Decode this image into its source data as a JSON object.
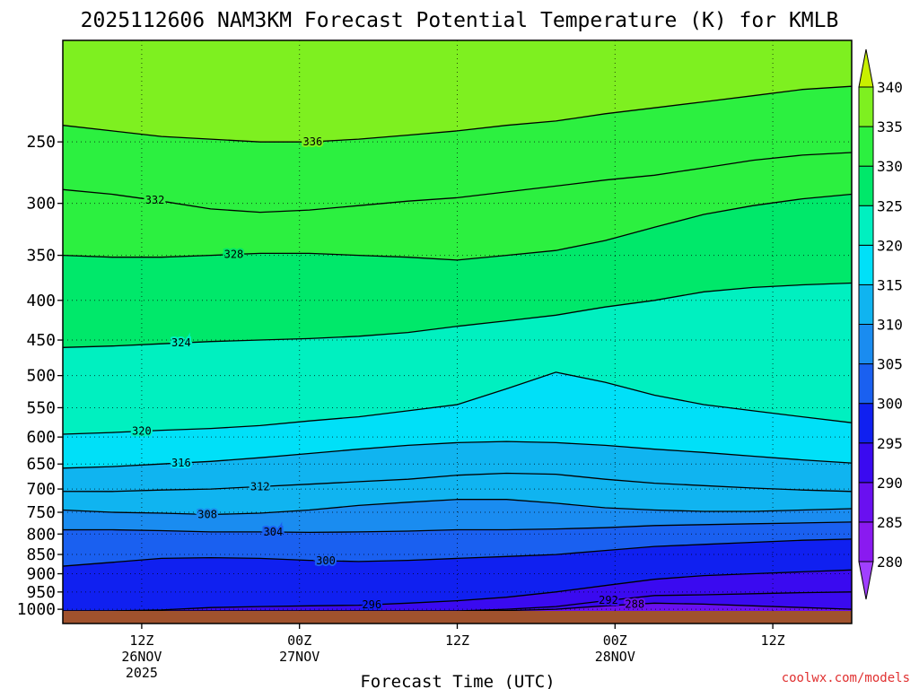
{
  "chart_data": {
    "type": "heatmap",
    "title": "2025112606 NAM3KM Forecast Potential Temperature (K) for KMLB",
    "xlabel": "Forecast Time (UTC)",
    "ylabel": "",
    "credit": "coolwx.com/models",
    "x_range_hours": [
      0,
      60
    ],
    "x_ticks": [
      {
        "hour": 6,
        "lines": [
          "12Z",
          "26NOV",
          "2025"
        ]
      },
      {
        "hour": 18,
        "lines": [
          "00Z",
          "27NOV"
        ]
      },
      {
        "hour": 30,
        "lines": [
          "12Z"
        ]
      },
      {
        "hour": 42,
        "lines": [
          "00Z",
          "28NOV"
        ]
      },
      {
        "hour": 54,
        "lines": [
          "12Z"
        ]
      }
    ],
    "y_ticks_hpa": [
      250,
      300,
      350,
      400,
      450,
      500,
      550,
      600,
      650,
      700,
      750,
      800,
      850,
      900,
      950,
      1000
    ],
    "colorbar": {
      "levels": [
        280,
        285,
        290,
        295,
        300,
        305,
        310,
        315,
        320,
        325,
        330,
        335,
        340
      ],
      "colors": [
        "#a040ff",
        "#8a1af0",
        "#6a10f0",
        "#3a0af0",
        "#1020f0",
        "#1a60f0",
        "#1a8cf0",
        "#10b4f0",
        "#00e0f8",
        "#00f0c0",
        "#00e86a",
        "#2cf040",
        "#7ef020",
        "#c8f000"
      ]
    },
    "isentropes": [
      {
        "theta": 288,
        "label_hour": 43.5,
        "p": [
          1005,
          1005,
          1005,
          1005,
          1005,
          1005,
          1005,
          1005,
          1005,
          1004,
          1000,
          990,
          982,
          985,
          990,
          995,
          1000
        ]
      },
      {
        "theta": 292,
        "label_hour": 41.5,
        "p": [
          1005,
          1005,
          1005,
          1005,
          1005,
          1005,
          1005,
          1005,
          1005,
          1000,
          992,
          975,
          960,
          958,
          955,
          952,
          950
        ]
      },
      {
        "theta": 296,
        "label_hour": 23.5,
        "p": [
          1005,
          1005,
          1002,
          995,
          992,
          990,
          988,
          982,
          975,
          965,
          950,
          932,
          915,
          905,
          900,
          895,
          890
        ]
      },
      {
        "theta": 300,
        "label_hour": 20,
        "p": [
          880,
          870,
          860,
          858,
          860,
          865,
          868,
          865,
          860,
          855,
          850,
          840,
          830,
          825,
          820,
          815,
          812
        ]
      },
      {
        "theta": 304,
        "label_hour": 16,
        "p": [
          790,
          790,
          792,
          795,
          795,
          796,
          795,
          793,
          790,
          790,
          788,
          785,
          780,
          778,
          776,
          774,
          772
        ]
      },
      {
        "theta": 308,
        "label_hour": 11,
        "p": [
          745,
          750,
          752,
          755,
          752,
          745,
          735,
          728,
          722,
          722,
          730,
          740,
          745,
          748,
          748,
          745,
          742
        ]
      },
      {
        "theta": 312,
        "label_hour": 15,
        "p": [
          705,
          705,
          702,
          700,
          695,
          690,
          685,
          680,
          672,
          668,
          670,
          680,
          688,
          693,
          698,
          702,
          705
        ]
      },
      {
        "theta": 316,
        "label_hour": 9,
        "p": [
          658,
          655,
          650,
          645,
          638,
          630,
          622,
          615,
          610,
          608,
          610,
          615,
          622,
          628,
          635,
          642,
          648
        ]
      },
      {
        "theta": 320,
        "label_hour": 6,
        "p": [
          595,
          592,
          588,
          585,
          580,
          572,
          565,
          555,
          545,
          520,
          495,
          510,
          530,
          545,
          555,
          565,
          575
        ]
      },
      {
        "theta": 324,
        "label_hour": 9,
        "p": [
          460,
          458,
          455,
          452,
          450,
          448,
          445,
          440,
          432,
          425,
          418,
          408,
          400,
          390,
          385,
          382,
          380
        ]
      },
      {
        "theta": 328,
        "label_hour": 13,
        "p": [
          350,
          352,
          352,
          350,
          348,
          348,
          350,
          352,
          355,
          350,
          345,
          335,
          322,
          310,
          302,
          296,
          292
        ]
      },
      {
        "theta": 332,
        "label_hour": 7,
        "p": [
          288,
          292,
          298,
          305,
          308,
          306,
          302,
          298,
          295,
          290,
          285,
          280,
          276,
          270,
          264,
          260,
          258
        ]
      },
      {
        "theta": 336,
        "label_hour": 19,
        "p": [
          238,
          242,
          246,
          248,
          250,
          250,
          248,
          245,
          242,
          238,
          235,
          230,
          226,
          222,
          218,
          214,
          212
        ]
      }
    ]
  }
}
